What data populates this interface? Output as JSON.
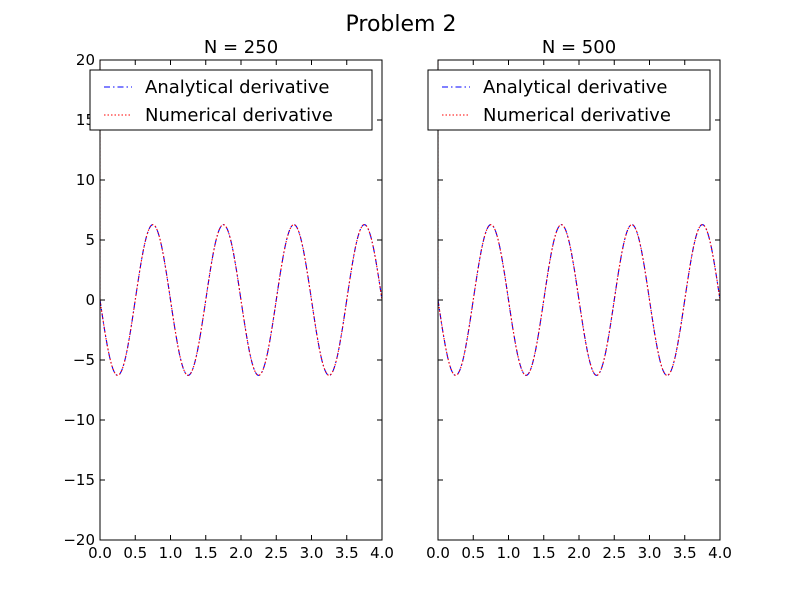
{
  "figure": {
    "title": "Problem 2"
  },
  "chart_data": [
    {
      "type": "line",
      "title": "N = 250",
      "xlabel": "",
      "ylabel": "",
      "xlim": [
        0,
        4
      ],
      "ylim": [
        -20,
        20
      ],
      "xticks": [
        "0.0",
        "0.5",
        "1.0",
        "1.5",
        "2.0",
        "2.5",
        "3.0",
        "3.5",
        "4.0"
      ],
      "yticks": [
        "−20",
        "−15",
        "−10",
        "−5",
        "0",
        "5",
        "10",
        "15",
        "20"
      ],
      "legend": "top-right",
      "grid": false,
      "series": [
        {
          "name": "Analytical derivative",
          "color": "#0000ff",
          "linestyle": "dashdot",
          "function": "2*pi*sin(2*pi*x - pi/2) style wave",
          "x": [
            0,
            0.25,
            0.5,
            0.75,
            1.0,
            1.25,
            1.5,
            1.75,
            2.0,
            2.25,
            2.5,
            2.75,
            3.0,
            3.25,
            3.5,
            3.75,
            4.0
          ],
          "y": [
            0,
            -6.28,
            0,
            6.28,
            0,
            -6.28,
            0,
            6.28,
            0,
            -6.28,
            0,
            6.28,
            0,
            -6.28,
            0,
            6.28,
            0
          ]
        },
        {
          "name": "Numerical derivative",
          "color": "#ff0000",
          "linestyle": "dotted",
          "x": [
            0,
            0.25,
            0.5,
            0.75,
            1.0,
            1.25,
            1.5,
            1.75,
            2.0,
            2.25,
            2.5,
            2.75,
            3.0,
            3.25,
            3.5,
            3.75,
            4.0
          ],
          "y": [
            0,
            -6.28,
            0,
            6.28,
            0,
            -6.28,
            0,
            6.28,
            0,
            -6.28,
            0,
            6.28,
            0,
            -6.28,
            0,
            6.28,
            0
          ],
          "edge_spikes": [
            {
              "x": 0,
              "y": 20
            },
            {
              "x": 4,
              "y": 0
            }
          ]
        }
      ]
    },
    {
      "type": "line",
      "title": "N = 500",
      "xlabel": "",
      "ylabel": "",
      "xlim": [
        0,
        4
      ],
      "ylim": [
        -20,
        20
      ],
      "xticks": [
        "0.0",
        "0.5",
        "1.0",
        "1.5",
        "2.0",
        "2.5",
        "3.0",
        "3.5",
        "4.0"
      ],
      "yticks": [],
      "legend": "top-right",
      "grid": false,
      "series": [
        {
          "name": "Analytical derivative",
          "color": "#0000ff",
          "linestyle": "dashdot",
          "x": [
            0,
            0.25,
            0.5,
            0.75,
            1.0,
            1.25,
            1.5,
            1.75,
            2.0,
            2.25,
            2.5,
            2.75,
            3.0,
            3.25,
            3.5,
            3.75,
            4.0
          ],
          "y": [
            0,
            -6.28,
            0,
            6.28,
            0,
            -6.28,
            0,
            6.28,
            0,
            -6.28,
            0,
            6.28,
            0,
            -6.28,
            0,
            6.28,
            0
          ]
        },
        {
          "name": "Numerical derivative",
          "color": "#ff0000",
          "linestyle": "dotted",
          "x": [
            0,
            0.25,
            0.5,
            0.75,
            1.0,
            1.25,
            1.5,
            1.75,
            2.0,
            2.25,
            2.5,
            2.75,
            3.0,
            3.25,
            3.5,
            3.75,
            4.0
          ],
          "y": [
            0,
            -6.28,
            0,
            6.28,
            0,
            -6.28,
            0,
            6.28,
            0,
            -6.28,
            0,
            6.28,
            0,
            -6.28,
            0,
            6.28,
            0
          ],
          "edge_spikes": [
            {
              "x": 0,
              "y": 20
            },
            {
              "x": 4,
              "y": 0
            }
          ]
        }
      ]
    }
  ]
}
